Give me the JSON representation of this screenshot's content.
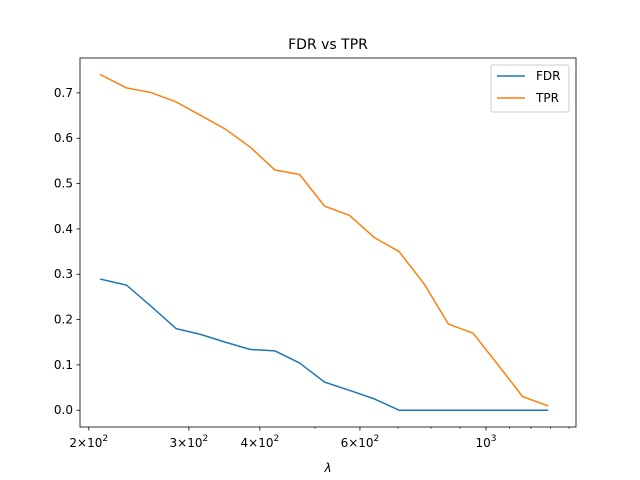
{
  "chart_data": {
    "type": "line",
    "title": "FDR vs TPR",
    "xlabel": "λ",
    "ylabel": "",
    "xscale": "log",
    "xlim": [
      193,
      1440
    ],
    "ylim": [
      -0.037,
      0.777
    ],
    "grid": false,
    "legend_position": "top-right",
    "x": [
      210,
      233,
      257,
      285,
      315,
      348,
      385,
      425,
      470,
      520,
      575,
      636,
      703,
      777,
      859,
      949,
      1050,
      1160,
      1283
    ],
    "series": [
      {
        "name": "FDR",
        "color": "#1f77b4",
        "values": [
          0.289,
          0.276,
          0.23,
          0.18,
          0.167,
          0.15,
          0.134,
          0.131,
          0.104,
          0.062,
          0.044,
          0.025,
          0.0,
          0.0,
          0.0,
          0.0,
          0.0,
          0.0,
          0.0
        ]
      },
      {
        "name": "TPR",
        "color": "#ff7f0e",
        "values": [
          0.74,
          0.711,
          0.701,
          0.68,
          0.65,
          0.62,
          0.58,
          0.53,
          0.52,
          0.45,
          0.43,
          0.381,
          0.35,
          0.28,
          0.19,
          0.17,
          0.1,
          0.03,
          0.01
        ]
      }
    ],
    "y_ticks": [
      "0.0",
      "0.1",
      "0.2",
      "0.3",
      "0.4",
      "0.5",
      "0.6",
      "0.7"
    ],
    "x_ticks": [
      {
        "base": "2",
        "exp": "2",
        "value": 200
      },
      {
        "base": "3",
        "exp": "2",
        "value": 300
      },
      {
        "base": "4",
        "exp": "2",
        "value": 400
      },
      {
        "base": "6",
        "exp": "2",
        "value": 600
      },
      {
        "base": "",
        "exp": "3",
        "value": 1000
      }
    ]
  }
}
